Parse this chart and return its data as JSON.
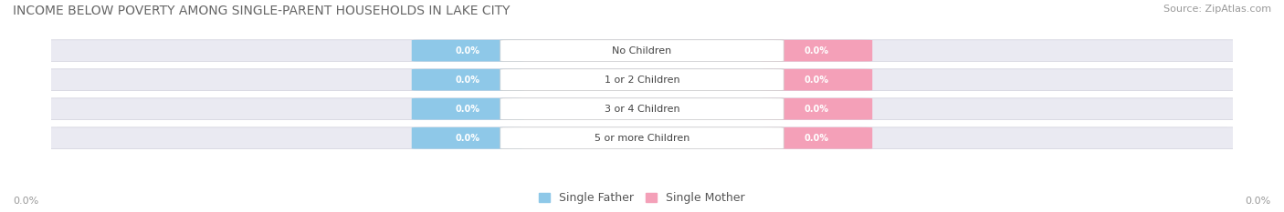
{
  "title": "INCOME BELOW POVERTY AMONG SINGLE-PARENT HOUSEHOLDS IN LAKE CITY",
  "source": "Source: ZipAtlas.com",
  "categories": [
    "No Children",
    "1 or 2 Children",
    "3 or 4 Children",
    "5 or more Children"
  ],
  "father_values": [
    0.0,
    0.0,
    0.0,
    0.0
  ],
  "mother_values": [
    0.0,
    0.0,
    0.0,
    0.0
  ],
  "father_color": "#8ec8e8",
  "mother_color": "#f4a0b8",
  "bar_bg_color": "#e8e8f0",
  "title_fontsize": 10,
  "source_fontsize": 8,
  "legend_fontsize": 9,
  "background_color": "#ffffff",
  "left_axis_label": "0.0%",
  "right_axis_label": "0.0%",
  "legend_father": "Single Father",
  "legend_mother": "Single Mother"
}
